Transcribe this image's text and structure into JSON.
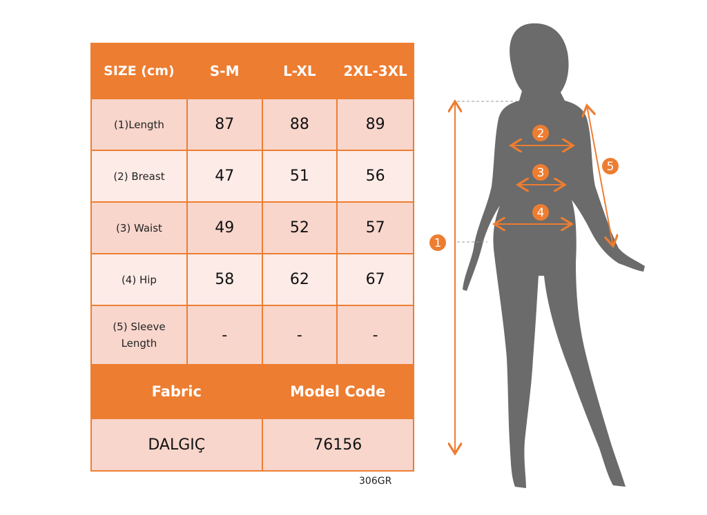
{
  "table": {
    "header": {
      "size_label": "SIZE (cm)",
      "columns": [
        "S-M",
        "L-XL",
        "2XL-3XL"
      ]
    },
    "rows": [
      {
        "label": "(1)Length",
        "values": [
          "87",
          "88",
          "89"
        ]
      },
      {
        "label": "(2) Breast",
        "values": [
          "47",
          "51",
          "56"
        ]
      },
      {
        "label": "(3) Waist",
        "values": [
          "49",
          "52",
          "57"
        ]
      },
      {
        "label": "(4) Hip",
        "values": [
          "58",
          "62",
          "67"
        ]
      },
      {
        "label": "(5) Sleeve Length",
        "values": [
          "-",
          "-",
          "-"
        ]
      }
    ],
    "fabric_label": "Fabric",
    "model_code_label": "Model Code",
    "fabric_value": "DALGIÇ",
    "model_code_value": "76156"
  },
  "product_code": "306GR",
  "figure": {
    "markers": [
      "1",
      "2",
      "3",
      "4",
      "5"
    ]
  },
  "colors": {
    "accent": "#ED7D31",
    "row_dark": "#F8D6CC",
    "row_light": "#FCEBE6",
    "silhouette": "#6B6B6B"
  }
}
